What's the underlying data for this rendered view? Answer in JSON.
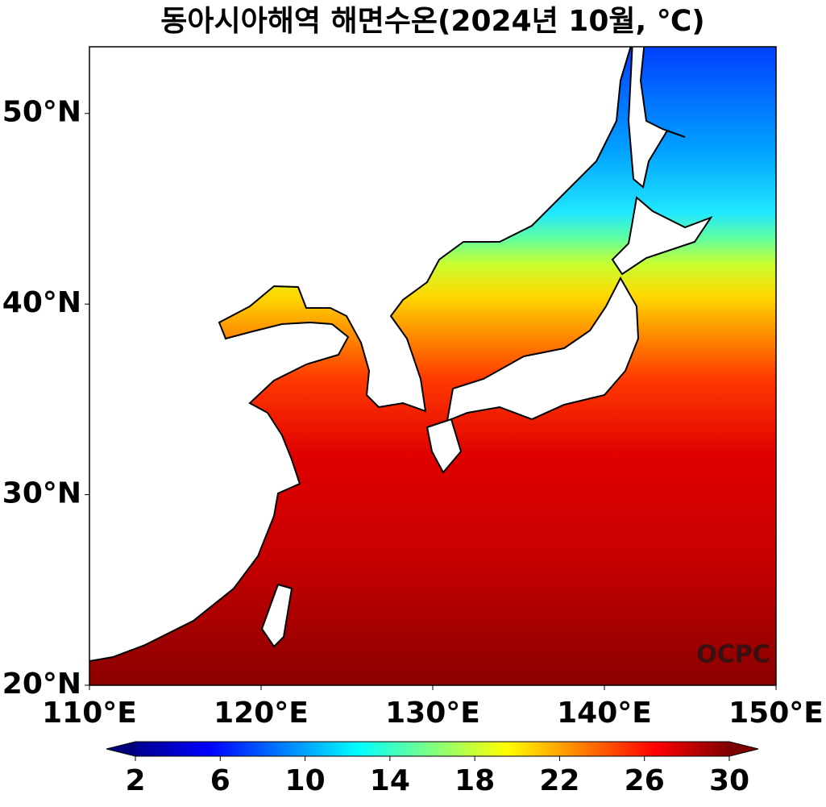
{
  "title": "동아시아해역 해면수온(2024년 10월, ℃)",
  "map": {
    "xlim": [
      110,
      150
    ],
    "ylim": [
      20,
      53.5
    ],
    "xticks": [
      {
        "value": 110,
        "label": "110°E"
      },
      {
        "value": 120,
        "label": "120°E"
      },
      {
        "value": 130,
        "label": "130°E"
      },
      {
        "value": 140,
        "label": "140°E"
      },
      {
        "value": 150,
        "label": "150°E"
      }
    ],
    "yticks": [
      {
        "value": 20,
        "label": "20°N"
      },
      {
        "value": 30,
        "label": "30°N"
      },
      {
        "value": 40,
        "label": "40°N"
      },
      {
        "value": 50,
        "label": "50°N"
      }
    ]
  },
  "colorbar": {
    "lim": [
      2,
      30
    ],
    "ticks": [
      2,
      6,
      10,
      14,
      18,
      22,
      26,
      30
    ]
  },
  "watermark": "OCPC"
}
